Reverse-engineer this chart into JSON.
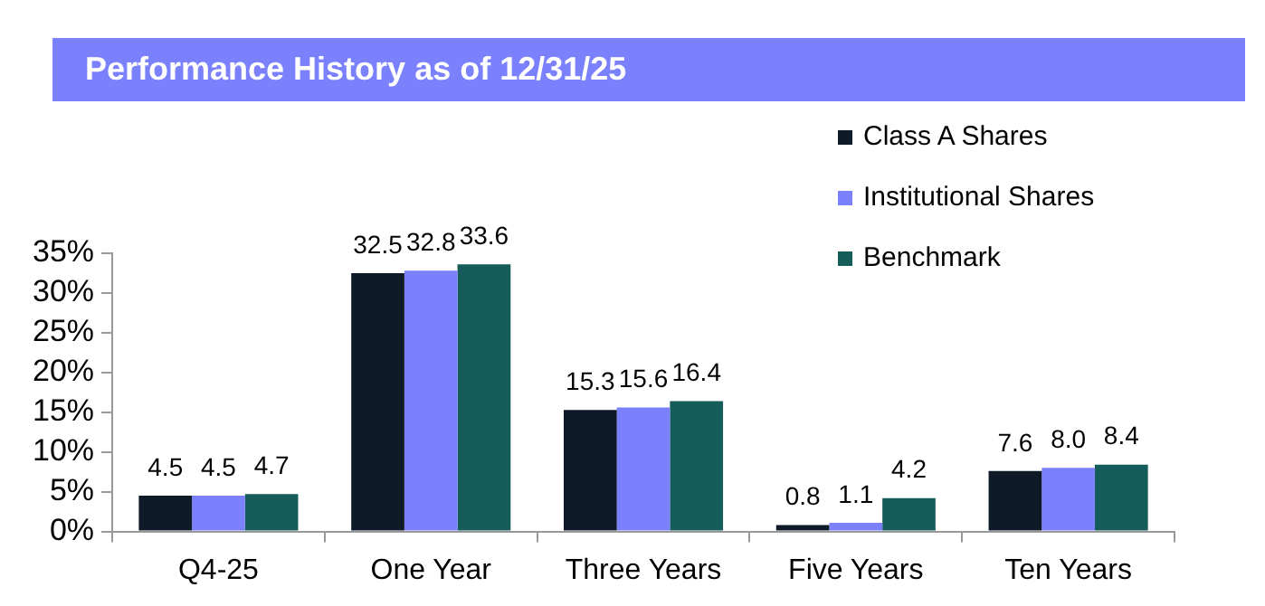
{
  "chart_data": {
    "type": "bar",
    "title": "Performance History as of 12/31/25",
    "categories": [
      "Q4-25",
      "One Year",
      "Three Years",
      "Five Years",
      "Ten Years"
    ],
    "series": [
      {
        "name": "Class A Shares",
        "color": "#0f1a28",
        "values": [
          4.5,
          32.5,
          15.3,
          0.8,
          7.6
        ],
        "value_labels": [
          "4.5",
          "32.5",
          "15.3",
          "0.8",
          "7.6"
        ]
      },
      {
        "name": "Institutional Shares",
        "color": "#7b80fc",
        "values": [
          4.5,
          32.8,
          15.6,
          1.1,
          8.0
        ],
        "value_labels": [
          "4.5",
          "32.8",
          "15.6",
          "1.1",
          "8.0"
        ]
      },
      {
        "name": "Benchmark",
        "color": "#155c5a",
        "values": [
          4.7,
          33.6,
          16.4,
          4.2,
          8.4
        ],
        "value_labels": [
          "4.7",
          "33.6",
          "16.4",
          "4.2",
          "8.4"
        ]
      }
    ],
    "ylim": [
      0,
      35
    ],
    "yticks": [
      {
        "value": 0,
        "label": "0%"
      },
      {
        "value": 5,
        "label": "5%"
      },
      {
        "value": 10,
        "label": "10%"
      },
      {
        "value": 15,
        "label": "15%"
      },
      {
        "value": 20,
        "label": "20%"
      },
      {
        "value": 25,
        "label": "25%"
      },
      {
        "value": 30,
        "label": "30%"
      },
      {
        "value": 35,
        "label": "35%"
      }
    ],
    "legend": "top right",
    "grid": false
  }
}
